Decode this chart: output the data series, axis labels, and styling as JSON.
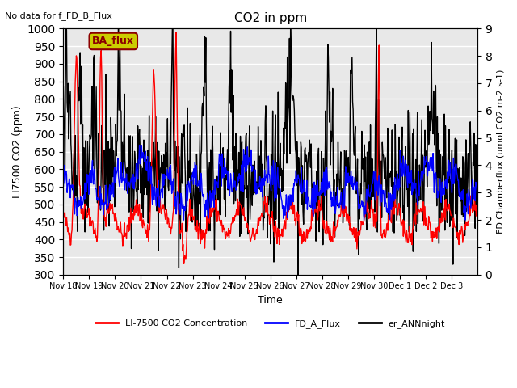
{
  "title": "CO2 in ppm",
  "annotation_text": "No data for f_FD_B_Flux",
  "legend_box_text": "BA_flux",
  "ylabel_left": "LI7500 CO2 (ppm)",
  "ylabel_right": "FD Chamberflux (umol CO2 m-2 s-1)",
  "xlabel": "Time",
  "ylim_left": [
    300,
    1000
  ],
  "ylim_right": [
    0.0,
    9.0
  ],
  "yticks_left": [
    300,
    350,
    400,
    450,
    500,
    550,
    600,
    650,
    700,
    750,
    800,
    850,
    900,
    950,
    1000
  ],
  "yticks_right": [
    0.0,
    1.0,
    2.0,
    3.0,
    4.0,
    5.0,
    6.0,
    7.0,
    8.0,
    9.0
  ],
  "xtick_positions": [
    0,
    1,
    2,
    3,
    4,
    5,
    6,
    7,
    8,
    9,
    10,
    11,
    12,
    13,
    14,
    15
  ],
  "xtick_labels": [
    "Nov 18",
    "Nov 19",
    "Nov 20",
    "Nov 21",
    "Nov 22",
    "Nov 23",
    "Nov 24",
    "Nov 25",
    "Nov 26",
    "Nov 27",
    "Nov 28",
    "Nov 29",
    "Nov 30",
    "Dec 1",
    "Dec 2",
    "Dec 3"
  ],
  "color_red": "#FF0000",
  "color_blue": "#0000FF",
  "color_black": "#000000",
  "bg_color": "#E8E8E8",
  "legend_box_facecolor": "#CCCC00",
  "legend_box_edgecolor": "#8B0000",
  "linewidth": 1.0,
  "n_days": 16,
  "pts_per_day": 48,
  "legend_labels": [
    "LI-7500 CO2 Concentration",
    "FD_A_Flux",
    "er_ANNnight"
  ],
  "legend_colors": [
    "#FF0000",
    "#0000FF",
    "#000000"
  ]
}
